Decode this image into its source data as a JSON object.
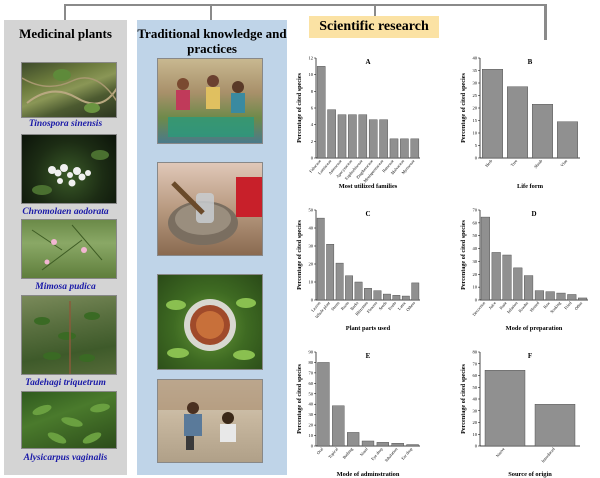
{
  "headers": {
    "medicinal": "Medicinal plants",
    "traditional": "Traditional knowledge and practices",
    "scientific": "Scientific research"
  },
  "plants": [
    {
      "name": "Tinospora sinensis",
      "icon": "tinospora-photo"
    },
    {
      "name": "Chromolaen aodorata",
      "icon": "chromolaena-photo"
    },
    {
      "name": "Mimosa pudica",
      "icon": "mimosa-photo"
    },
    {
      "name": "Tadehagi triquetrum",
      "icon": "tadehagi-photo"
    },
    {
      "name": "Alysicarpus vaginalis",
      "icon": "alysicarpus-photo"
    }
  ],
  "practice_photos": [
    "group-interview-photo",
    "grinding-herbs-photo",
    "herb-basket-photo",
    "field-visit-photo"
  ],
  "colors": {
    "medicinal_bg": "#d4d4d4",
    "traditional_bg": "#bfd4e8",
    "scientific_bg": "#fbe2a4",
    "bar_fill": "#909090",
    "connector": "#8a8a8a"
  },
  "chart_data": [
    {
      "id": "A",
      "type": "bar",
      "categories": [
        "Fabaceae",
        "Lamiaceae",
        "Asteraceae",
        "Apocynaceae",
        "Euphorbiaceae",
        "Zingiberaceae",
        "Menispermaceae",
        "Rutaceae",
        "Malvaceae",
        "Myrtaceae"
      ],
      "values": [
        11,
        5.8,
        5.2,
        5.2,
        5.2,
        4.6,
        4.6,
        2.3,
        2.3,
        2.3
      ],
      "ylim": [
        0,
        12
      ],
      "yticks": [
        0,
        2,
        4,
        6,
        8,
        10,
        12
      ],
      "ylabel": "Percentage of cited species",
      "xlabel": "Most utilized families"
    },
    {
      "id": "B",
      "type": "bar",
      "categories": [
        "Herb",
        "Tree",
        "Shrub",
        "Vine"
      ],
      "values": [
        35.5,
        28.5,
        21.5,
        14.5
      ],
      "ylim": [
        0,
        40
      ],
      "yticks": [
        0,
        5,
        10,
        15,
        20,
        25,
        30,
        35,
        40
      ],
      "ylabel": "Percentage of cited species",
      "xlabel": "Life form"
    },
    {
      "id": "C",
      "type": "bar",
      "categories": [
        "Leaves",
        "Whole plant",
        "Stems",
        "Roots",
        "Barks",
        "Rhizomes",
        "Flowers",
        "Seeds",
        "Fruits",
        "Latex",
        "Others"
      ],
      "values": [
        45.5,
        31,
        20.5,
        13.5,
        10,
        6.5,
        5.2,
        3.3,
        2.6,
        2.2,
        9.5
      ],
      "ylim": [
        0,
        50
      ],
      "yticks": [
        0,
        10,
        20,
        30,
        40,
        50
      ],
      "ylabel": "Percentage of cited species",
      "xlabel": "Plant parts used"
    },
    {
      "id": "D",
      "type": "bar",
      "categories": [
        "Decoction",
        "Juice",
        "Paste",
        "Infusion",
        "Powder",
        "Heated",
        "Raw",
        "Soaking",
        "Fried",
        "Other"
      ],
      "values": [
        64.5,
        37,
        35,
        25,
        19,
        7.3,
        6.5,
        5.4,
        4.3,
        1.6
      ],
      "ylim": [
        0,
        70
      ],
      "yticks": [
        0,
        10,
        20,
        30,
        40,
        50,
        60,
        70
      ],
      "ylabel": "Percentage of cited species",
      "xlabel": "Mode of preparation"
    },
    {
      "id": "E",
      "type": "bar",
      "categories": [
        "Oral",
        "Topical",
        "Bathing",
        "Nasal",
        "Eye drop",
        "Inhalation",
        "Ear drop"
      ],
      "values": [
        80,
        38.5,
        13,
        4.8,
        3.5,
        2.6,
        1.4
      ],
      "ylim": [
        0,
        90
      ],
      "yticks": [
        0,
        10,
        20,
        30,
        40,
        50,
        60,
        70,
        80,
        90
      ],
      "ylabel": "Percentage of cited species",
      "xlabel": "Mode of adminstration"
    },
    {
      "id": "F",
      "type": "bar",
      "categories": [
        "Native",
        "Introduced"
      ],
      "values": [
        64.5,
        35.5
      ],
      "ylim": [
        0,
        80
      ],
      "yticks": [
        0,
        10,
        20,
        30,
        40,
        50,
        60,
        70,
        80
      ],
      "ylabel": "Percentage of cited species",
      "xlabel": "Source of origin"
    }
  ]
}
